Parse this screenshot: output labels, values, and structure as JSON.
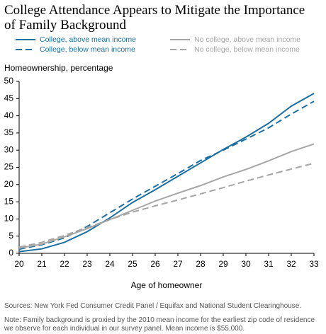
{
  "chart_data": {
    "type": "line",
    "title": "College Attendance Appears to Mitigate the Importance of Family Background",
    "y_label": "Homeownership, percentage",
    "x_label": "Age of homeowner",
    "source": "Sources: New York Fed Consumer Credit Panel / Equifax and National Student Clearinghouse.",
    "note": "Note: Family background is proxied by the 2010 mean income for the earliest zip code of residence we observe for each individual in our survey panel. Mean income is $55,000.",
    "x": [
      20,
      21,
      22,
      23,
      24,
      25,
      26,
      27,
      28,
      29,
      30,
      31,
      32,
      33
    ],
    "xlim": [
      20,
      33
    ],
    "xticks": [
      20,
      21,
      22,
      23,
      24,
      25,
      26,
      27,
      28,
      29,
      30,
      31,
      32,
      33
    ],
    "ylim": [
      0,
      50
    ],
    "yticks": [
      0,
      5,
      10,
      15,
      20,
      25,
      30,
      35,
      40,
      45,
      50
    ],
    "grid": false,
    "series": [
      {
        "name": "College, above mean income",
        "color": "#1a6fa3",
        "style": "solid",
        "values": [
          0.5,
          1.3,
          3.2,
          6.3,
          10.3,
          14.8,
          18.5,
          22.4,
          26.3,
          30.2,
          33.8,
          37.8,
          42.8,
          46.5
        ]
      },
      {
        "name": "College, below mean income",
        "color": "#1a6fa3",
        "style": "dashed",
        "values": [
          1.2,
          2.5,
          4.5,
          7.8,
          11.8,
          15.8,
          19.5,
          23.2,
          27,
          30,
          33.2,
          36.5,
          40.5,
          44.2
        ]
      },
      {
        "name": "No college, above mean income",
        "color": "#a6a6a6",
        "style": "solid",
        "values": [
          1.5,
          2.7,
          4.8,
          7.2,
          9.8,
          12.5,
          15.2,
          17.5,
          19.7,
          22.2,
          24.4,
          26.9,
          29.6,
          31.8
        ]
      },
      {
        "name": "No college, below mean income",
        "color": "#a6a6a6",
        "style": "dashed",
        "values": [
          1.8,
          3.2,
          5.2,
          7.5,
          9.8,
          12,
          13.8,
          15.5,
          17.3,
          19.1,
          21,
          22.8,
          24.5,
          26.2
        ]
      }
    ]
  }
}
